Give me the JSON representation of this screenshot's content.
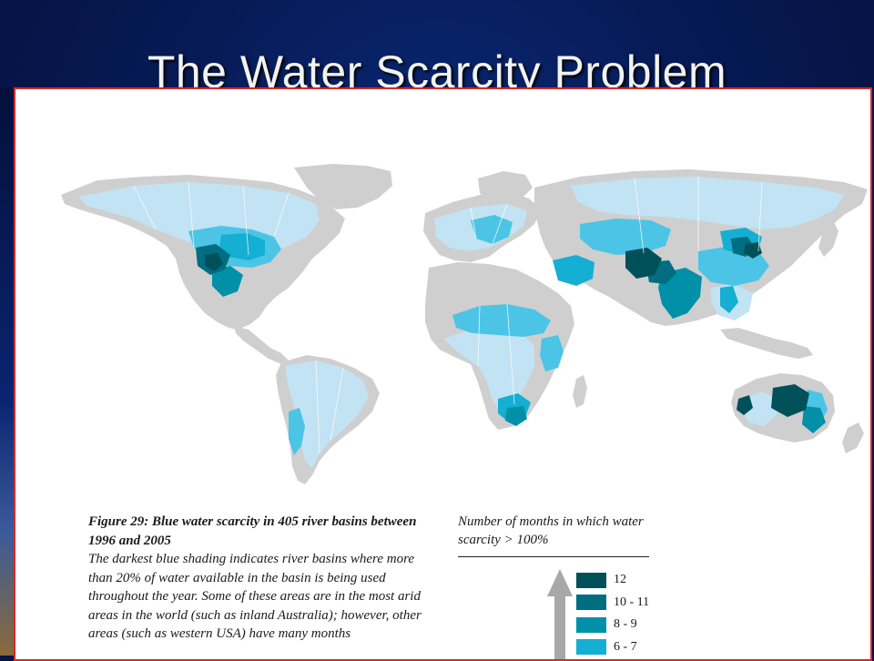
{
  "slide": {
    "title": "The Water Scarcity Problem"
  },
  "figure": {
    "caption_title": "Figure 29: Blue water scarcity in 405 river basins between 1996 and 2005",
    "caption_text": "The darkest blue shading indicates river basins where more than 20% of water available in the basin is being used throughout the year. Some of these areas are in the most arid areas in the world (such as inland Australia); however, other areas (such as western USA) have many months"
  },
  "legend": {
    "title": "Number of months in which water scarcity > 100%",
    "items": [
      {
        "label": "12",
        "color": "#00505a"
      },
      {
        "label": "10 - 11",
        "color": "#006d80"
      },
      {
        "label": "8 - 9",
        "color": "#0090a8"
      },
      {
        "label": "6 - 7",
        "color": "#14afd2"
      },
      {
        "label": "",
        "color": "#4cc4e6"
      }
    ]
  },
  "colors": {
    "no_data": "#cfcfcf",
    "level_low": "#c2e3f3",
    "level_mid": "#4cc4e6",
    "level_6_7": "#14afd2",
    "level_8_9": "#0090a8",
    "level_10_11": "#006d80",
    "level_12": "#00505a"
  }
}
